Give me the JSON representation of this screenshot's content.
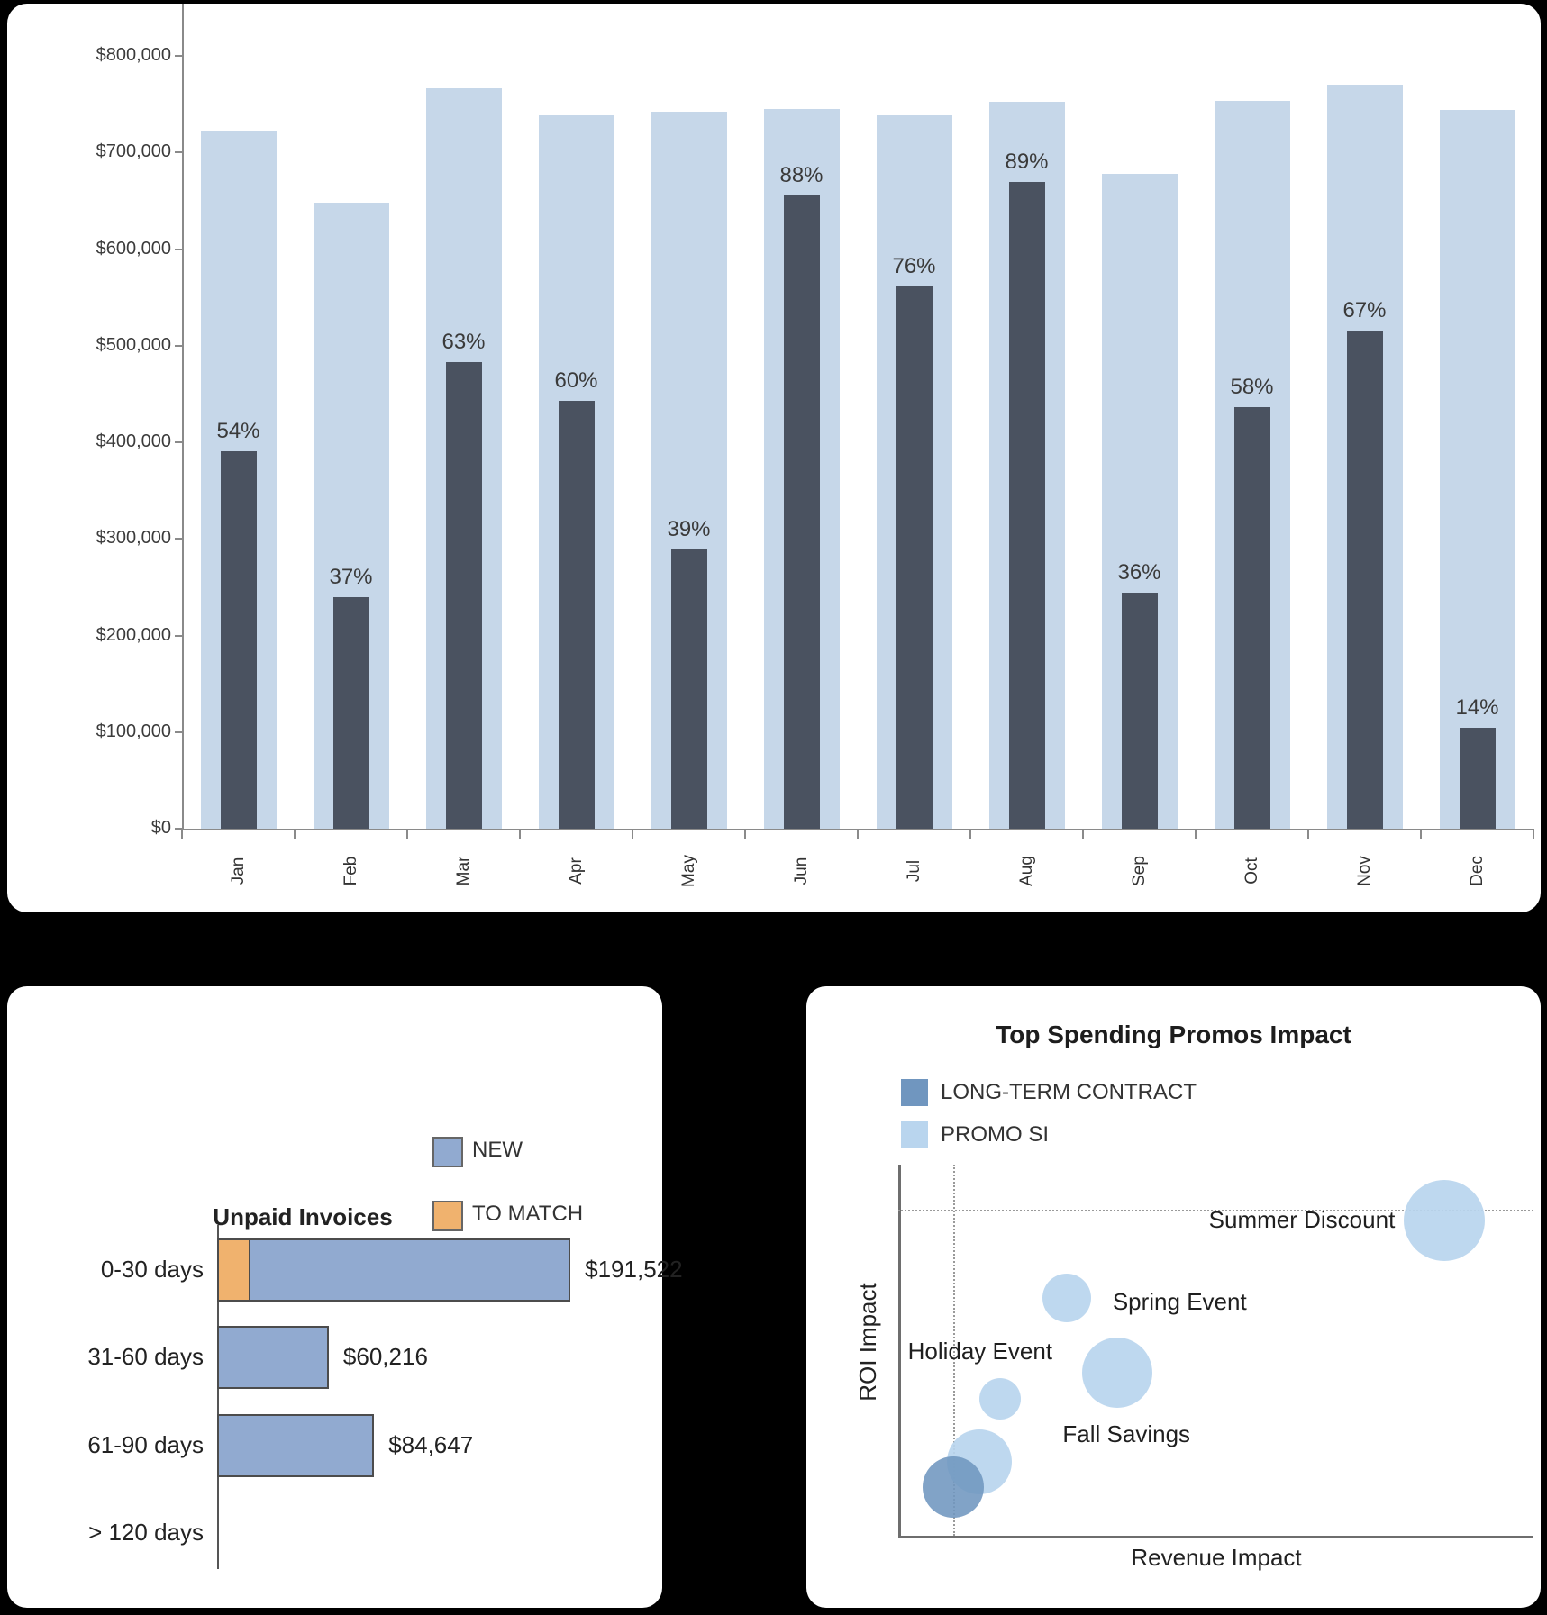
{
  "accent_colors": {
    "light_bar": "#c6d7e9",
    "dark_bar": "#4a5260",
    "invoice_blue": "#91aad0",
    "invoice_orange": "#f0b26e",
    "bubble_light": "#b9d5ee",
    "bubble_dark": "#7096bf"
  },
  "chart_data": [
    {
      "id": "monthly_totals",
      "type": "bar",
      "categories": [
        "Jan",
        "Feb",
        "Mar",
        "Apr",
        "May",
        "Jun",
        "Jul",
        "Aug",
        "Sep",
        "Oct",
        "Nov",
        "Dec"
      ],
      "series": [
        {
          "name": "total",
          "values": [
            723000,
            648000,
            766000,
            738000,
            742000,
            745000,
            738000,
            752000,
            678000,
            753000,
            770000,
            744000
          ]
        },
        {
          "name": "achieved_pct_of_total",
          "values": [
            54,
            37,
            63,
            60,
            39,
            88,
            76,
            89,
            36,
            58,
            67,
            14
          ]
        }
      ],
      "bar_labels": [
        "54%",
        "37%",
        "63%",
        "60%",
        "39%",
        "88%",
        "76%",
        "89%",
        "36%",
        "58%",
        "67%",
        "14%"
      ],
      "y_tick_labels": [
        "$800,000",
        "$700,000",
        "$600,000",
        "$500,000",
        "$400,000",
        "$300,000",
        "$200,000",
        "$100,000",
        "$0"
      ],
      "ylim": [
        0,
        800000
      ],
      "grid": false,
      "legend_position": "none"
    },
    {
      "id": "unpaid_invoices",
      "type": "bar",
      "title": "Unpaid Invoices",
      "legend": [
        {
          "label": "NEW",
          "color": "#91aad0"
        },
        {
          "label": "TO MATCH",
          "color": "#f0b26e"
        }
      ],
      "categories": [
        "0-30 days",
        "31-60 days",
        "61-90 days",
        "> 120 days"
      ],
      "series": [
        {
          "name": "TO MATCH",
          "values": [
            18000,
            0,
            0,
            0
          ]
        },
        {
          "name": "NEW",
          "values": [
            173522,
            60216,
            84647,
            0
          ]
        }
      ],
      "total_labels": [
        "$191,522",
        "$60,216",
        "$84,647",
        ""
      ],
      "orientation": "horizontal",
      "legend_position": "top-right"
    },
    {
      "id": "promos_impact",
      "type": "scatter",
      "title": "Top Spending Promos Impact",
      "xlabel": "Revenue Impact",
      "ylabel": "ROI Impact",
      "legend": [
        {
          "label": "LONG-TERM CONTRACT",
          "color": "#7096bf"
        },
        {
          "label": "PROMO SI",
          "color": "#b9d5ee"
        }
      ],
      "points": [
        {
          "label": "Summer Discount",
          "series": "PROMO SI",
          "x": 0.86,
          "y": 0.85,
          "r": 45,
          "label_anchor": "left"
        },
        {
          "label": "Spring Event",
          "series": "PROMO SI",
          "x": 0.265,
          "y": 0.64,
          "r": 27,
          "label_anchor": "right"
        },
        {
          "label": "Fall Savings",
          "series": "PROMO SI",
          "x": 0.345,
          "y": 0.44,
          "r": 39,
          "label_anchor": "below"
        },
        {
          "label": "Holiday Event",
          "series": "PROMO SI",
          "x": 0.16,
          "y": 0.37,
          "r": 23,
          "label_anchor": "above"
        },
        {
          "label": "",
          "series": "PROMO SI",
          "x": 0.127,
          "y": 0.2,
          "r": 36
        },
        {
          "label": "",
          "series": "LONG-TERM CONTRACT",
          "x": 0.087,
          "y": 0.13,
          "r": 34
        }
      ],
      "ref_lines": {
        "vertical_x": 0.087,
        "horizontal_y": 0.878
      },
      "axis_ranges": "unlabeled"
    }
  ]
}
